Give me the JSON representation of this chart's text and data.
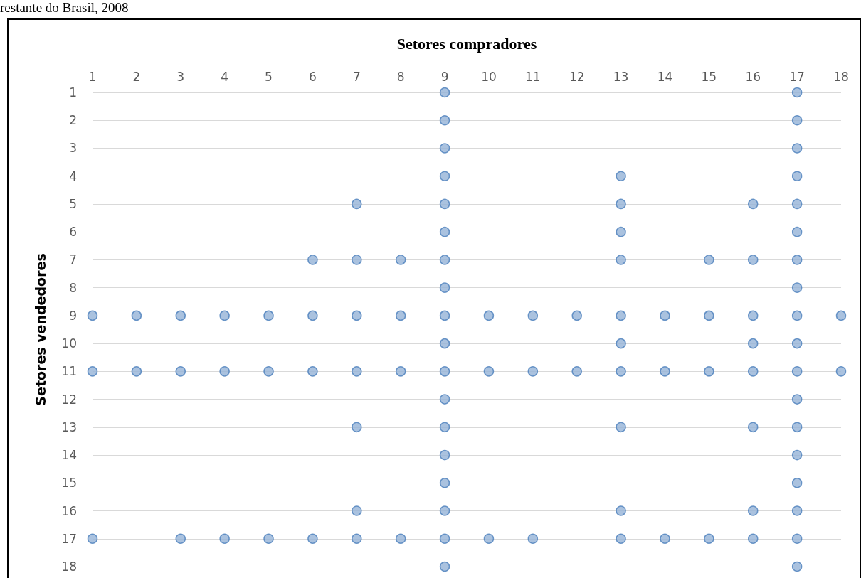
{
  "chart_data": {
    "type": "scatter",
    "title": "restante do Brasil, 2008",
    "xlabel": "Setores compradores",
    "ylabel": "Setores vendedores",
    "x": [
      9,
      17,
      9,
      17,
      9,
      17,
      9,
      13,
      17,
      7,
      9,
      13,
      16,
      17,
      9,
      13,
      17,
      6,
      7,
      8,
      9,
      13,
      15,
      16,
      17,
      9,
      17,
      1,
      2,
      3,
      4,
      5,
      6,
      7,
      8,
      9,
      10,
      11,
      12,
      13,
      14,
      15,
      16,
      17,
      18,
      9,
      13,
      16,
      17,
      1,
      2,
      3,
      4,
      5,
      6,
      7,
      8,
      9,
      10,
      11,
      12,
      13,
      14,
      15,
      16,
      17,
      18,
      9,
      17,
      7,
      9,
      13,
      16,
      17,
      9,
      17,
      9,
      17,
      7,
      9,
      13,
      16,
      17,
      1,
      3,
      4,
      5,
      6,
      7,
      8,
      9,
      10,
      11,
      13,
      14,
      15,
      16,
      17,
      9,
      17
    ],
    "values": [
      1,
      1,
      2,
      2,
      3,
      3,
      4,
      4,
      4,
      5,
      5,
      5,
      5,
      5,
      6,
      6,
      6,
      7,
      7,
      7,
      7,
      7,
      7,
      7,
      7,
      8,
      8,
      9,
      9,
      9,
      9,
      9,
      9,
      9,
      9,
      9,
      9,
      9,
      9,
      9,
      9,
      9,
      9,
      9,
      9,
      10,
      10,
      10,
      10,
      11,
      11,
      11,
      11,
      11,
      11,
      11,
      11,
      11,
      11,
      11,
      11,
      11,
      11,
      11,
      11,
      11,
      11,
      12,
      12,
      13,
      13,
      13,
      13,
      13,
      14,
      14,
      15,
      15,
      16,
      16,
      16,
      16,
      16,
      17,
      17,
      17,
      17,
      17,
      17,
      17,
      17,
      17,
      17,
      17,
      17,
      17,
      17,
      17,
      18,
      18
    ],
    "color": "#95b3d7",
    "marker": "circle",
    "grid": "y",
    "xlim": [
      1,
      18
    ],
    "xticks": [
      1,
      2,
      3,
      4,
      5,
      6,
      7,
      8,
      9,
      10,
      11,
      12,
      13,
      14,
      15,
      16,
      17,
      18
    ],
    "ylim": [
      18,
      1
    ],
    "yticks": [
      1,
      2,
      3,
      4,
      5,
      6,
      7,
      8,
      9,
      10,
      11,
      12,
      13,
      14,
      15,
      16,
      17,
      18
    ]
  }
}
